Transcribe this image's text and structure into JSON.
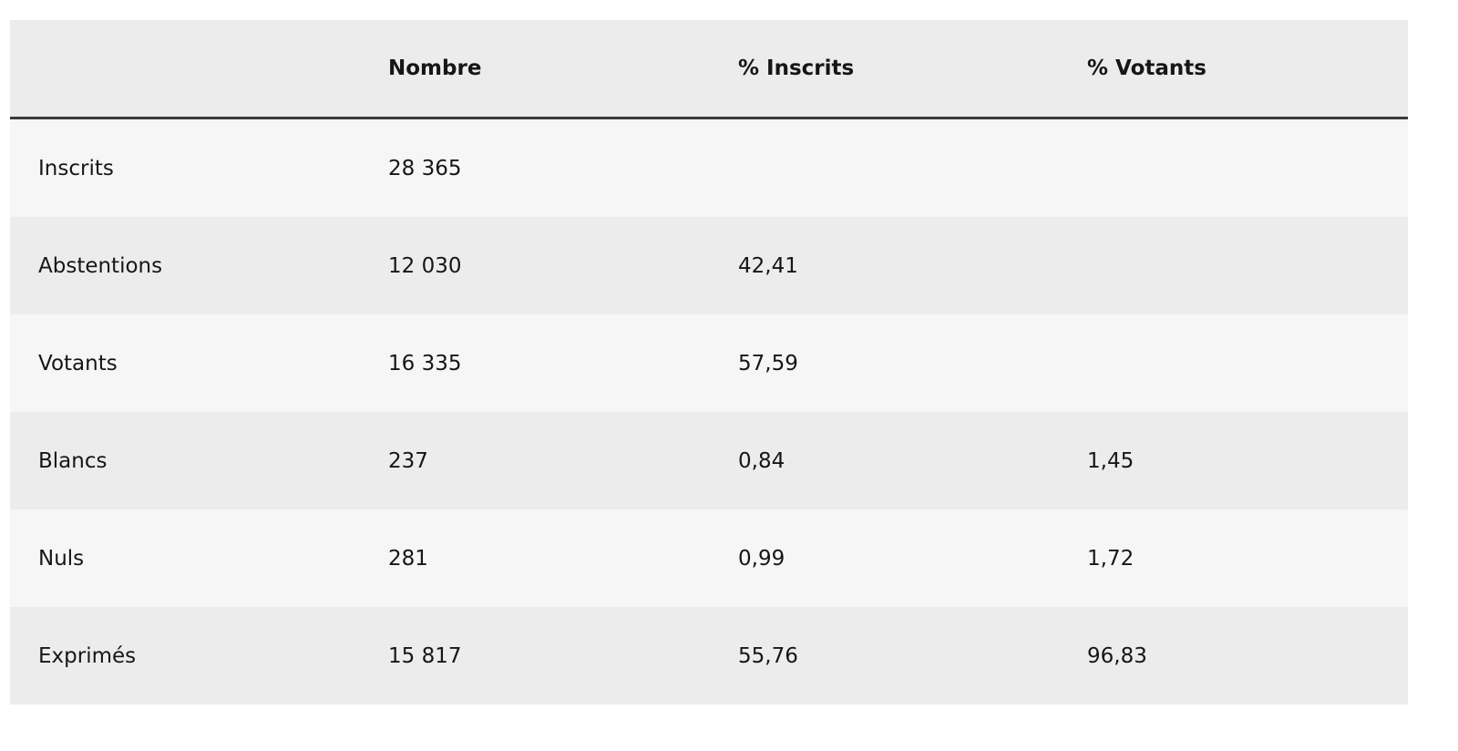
{
  "table": {
    "header": [
      null,
      "Nombre",
      "% Inscrits",
      "% Votants"
    ],
    "rows": [
      [
        "Inscrits",
        "28 365",
        null,
        null
      ],
      [
        "Abstentions",
        "12 030",
        "42,41",
        null
      ],
      [
        "Votants",
        "16 335",
        "57,59",
        null
      ],
      [
        "Blancs",
        "237",
        "0,84",
        "1,45"
      ],
      [
        "Nuls",
        "281",
        "0,99",
        "1,72"
      ],
      [
        "Exprimés",
        "15 817",
        "55,76",
        "96,83"
      ]
    ]
  }
}
